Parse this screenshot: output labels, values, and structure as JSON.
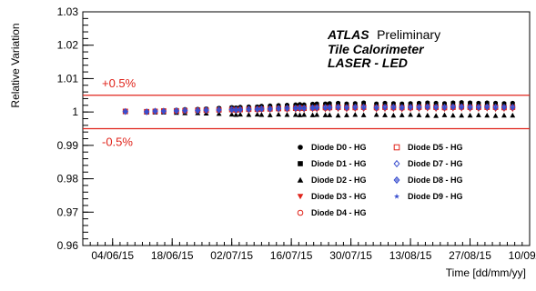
{
  "chart_data": {
    "type": "scatter",
    "xlabel": "Time [dd/mm/yy]",
    "ylabel": "Relative Variation",
    "xlim": [
      "2015-05-28",
      "2015-09-10"
    ],
    "ylim": [
      0.96,
      1.03
    ],
    "x_ticks": [
      "04/06/15",
      "18/06/15",
      "02/07/15",
      "16/07/15",
      "30/07/15",
      "13/08/15",
      "27/08/15",
      "10/09/15"
    ],
    "x_tick_dates": [
      "2015-06-04",
      "2015-06-18",
      "2015-07-02",
      "2015-07-16",
      "2015-07-30",
      "2015-08-13",
      "2015-08-27",
      "2015-09-10"
    ],
    "y_ticks": [
      "0.96",
      "0.97",
      "0.98",
      "0.99",
      "1",
      "1.01",
      "1.02",
      "1.03"
    ],
    "y_tick_values": [
      0.96,
      0.97,
      0.98,
      0.99,
      1.0,
      1.01,
      1.02,
      1.03
    ],
    "reference_lines": [
      {
        "y": 1.005,
        "label": "+0.5%",
        "color": "#e0241b"
      },
      {
        "y": 0.995,
        "label": "-0.5%",
        "color": "#e0241b"
      }
    ],
    "annotation": {
      "atlas": "ATLAS",
      "preliminary": "Preliminary",
      "line2": "Tile Calorimeter",
      "line3": "LASER - LED"
    },
    "legend_placement": "bottom-right",
    "x": [
      "2015-06-07",
      "2015-06-12",
      "2015-06-14",
      "2015-06-16",
      "2015-06-19",
      "2015-06-21",
      "2015-06-24",
      "2015-06-26",
      "2015-06-29",
      "2015-07-02",
      "2015-07-03",
      "2015-07-04",
      "2015-07-06",
      "2015-07-08",
      "2015-07-09",
      "2015-07-11",
      "2015-07-13",
      "2015-07-15",
      "2015-07-17",
      "2015-07-18",
      "2015-07-19",
      "2015-07-21",
      "2015-07-22",
      "2015-07-24",
      "2015-07-25",
      "2015-07-27",
      "2015-07-29",
      "2015-07-31",
      "2015-08-02",
      "2015-08-05",
      "2015-08-07",
      "2015-08-09",
      "2015-08-11",
      "2015-08-13",
      "2015-08-15",
      "2015-08-17",
      "2015-08-19",
      "2015-08-21",
      "2015-08-23",
      "2015-08-25",
      "2015-08-27",
      "2015-08-29",
      "2015-08-31",
      "2015-09-02",
      "2015-09-04",
      "2015-09-06"
    ],
    "series": [
      {
        "name": "Diode D0 - HG",
        "marker": "circle-filled",
        "color": "#000000",
        "values": [
          1.0003,
          1.0002,
          1.0004,
          1.0005,
          1.0006,
          1.0008,
          1.0009,
          1.001,
          1.0012,
          1.0014,
          1.0013,
          1.0015,
          1.0016,
          1.0016,
          1.0018,
          1.0019,
          1.002,
          1.0021,
          1.0022,
          1.0023,
          1.0022,
          1.0024,
          1.0025,
          1.0025,
          1.0026,
          1.0027,
          1.0025,
          1.0026,
          1.0028,
          1.0025,
          1.0027,
          1.0026,
          1.0025,
          1.0026,
          1.0027,
          1.0028,
          1.0027,
          1.0026,
          1.0028,
          1.0029,
          1.0028,
          1.0027,
          1.0028,
          1.0027,
          1.0026,
          1.0027
        ]
      },
      {
        "name": "Diode D1 - HG",
        "marker": "square-filled",
        "color": "#000000",
        "values": [
          1.0002,
          1.0001,
          1.0003,
          1.0004,
          1.0005,
          1.0006,
          1.0007,
          1.0008,
          1.001,
          1.0012,
          1.0011,
          1.0012,
          1.0013,
          1.0014,
          1.0015,
          1.0016,
          1.0017,
          1.0018,
          1.0019,
          1.002,
          1.0019,
          1.0021,
          1.0022,
          1.0022,
          1.0023,
          1.0024,
          1.0022,
          1.0023,
          1.0025,
          1.0022,
          1.0024,
          1.0023,
          1.0022,
          1.0023,
          1.0024,
          1.0025,
          1.0024,
          1.0023,
          1.0025,
          1.0026,
          1.0025,
          1.0024,
          1.0025,
          1.0024,
          1.0023,
          1.0024
        ]
      },
      {
        "name": "Diode D2 - HG",
        "marker": "triangle-up-filled",
        "color": "#000000",
        "values": [
          1.0,
          0.9999,
          0.9999,
          0.9999,
          0.9998,
          0.9997,
          0.9997,
          0.9996,
          0.9995,
          0.9993,
          0.9992,
          0.9993,
          0.9992,
          0.9993,
          0.9992,
          0.9991,
          0.9993,
          0.9992,
          0.9992,
          0.9991,
          0.9992,
          0.9991,
          0.9992,
          0.9991,
          0.9991,
          0.999,
          0.9991,
          0.9992,
          0.9991,
          0.9992,
          0.9991,
          0.999,
          0.9991,
          0.9992,
          0.9991,
          0.999,
          0.9989,
          0.9991,
          0.999,
          0.999,
          0.999,
          0.9991,
          0.999,
          0.9989,
          0.999,
          0.999
        ]
      },
      {
        "name": "Diode D3 - HG",
        "marker": "triangle-down-filled",
        "color": "#e0241b",
        "values": [
          1.0001,
          1.0,
          1.0001,
          1.0001,
          1.0001,
          1.0002,
          1.0002,
          1.0002,
          1.0003,
          1.0003,
          1.0003,
          1.0004,
          1.0004,
          1.0004,
          1.0005,
          1.0005,
          1.0006,
          1.0006,
          1.0006,
          1.0007,
          1.0006,
          1.0007,
          1.0007,
          1.0007,
          1.0008,
          1.0008,
          1.0007,
          1.0008,
          1.0008,
          1.0007,
          1.0008,
          1.0008,
          1.0007,
          1.0008,
          1.0008,
          1.0009,
          1.0008,
          1.0008,
          1.0009,
          1.0009,
          1.0008,
          1.0008,
          1.0009,
          1.0008,
          1.0008,
          1.0008
        ]
      },
      {
        "name": "Diode D4 - HG",
        "marker": "circle-open",
        "color": "#e0241b",
        "values": [
          1.0001,
          1.0001,
          1.0002,
          1.0002,
          1.0003,
          1.0003,
          1.0004,
          1.0004,
          1.0005,
          1.0006,
          1.0005,
          1.0006,
          1.0007,
          1.0007,
          1.0008,
          1.0008,
          1.0009,
          1.0009,
          1.001,
          1.001,
          1.001,
          1.0011,
          1.0011,
          1.0011,
          1.0012,
          1.0012,
          1.0011,
          1.0012,
          1.0012,
          1.0011,
          1.0012,
          1.0012,
          1.0011,
          1.0012,
          1.0012,
          1.0013,
          1.0012,
          1.0012,
          1.0013,
          1.0013,
          1.0012,
          1.0012,
          1.0013,
          1.0012,
          1.0012,
          1.0012
        ]
      },
      {
        "name": "Diode D5 - HG",
        "marker": "square-open",
        "color": "#e0241b",
        "values": [
          1.0002,
          1.0001,
          1.0002,
          1.0003,
          1.0003,
          1.0004,
          1.0005,
          1.0005,
          1.0006,
          1.0007,
          1.0006,
          1.0007,
          1.0008,
          1.0008,
          1.0009,
          1.0009,
          1.001,
          1.001,
          1.0011,
          1.0012,
          1.0011,
          1.0012,
          1.0013,
          1.0013,
          1.0013,
          1.0014,
          1.0013,
          1.0013,
          1.0014,
          1.0013,
          1.0014,
          1.0013,
          1.0013,
          1.0013,
          1.0014,
          1.0015,
          1.0014,
          1.0013,
          1.0014,
          1.0015,
          1.0014,
          1.0014,
          1.0014,
          1.0014,
          1.0013,
          1.0014
        ]
      },
      {
        "name": "Diode D7 - HG",
        "marker": "diamond-open",
        "color": "#3a4fcf",
        "values": [
          1.0002,
          1.0001,
          1.0003,
          1.0003,
          1.0004,
          1.0005,
          1.0005,
          1.0006,
          1.0007,
          1.0008,
          1.0007,
          1.0008,
          1.0009,
          1.0009,
          1.001,
          1.001,
          1.0011,
          1.0012,
          1.0012,
          1.0013,
          1.0012,
          1.0013,
          1.0014,
          1.0014,
          1.0014,
          1.0015,
          1.0014,
          1.0015,
          1.0015,
          1.0014,
          1.0015,
          1.0015,
          1.0014,
          1.0015,
          1.0015,
          1.0016,
          1.0015,
          1.0015,
          1.0016,
          1.0016,
          1.0015,
          1.0015,
          1.0016,
          1.0015,
          1.0015,
          1.0015
        ]
      },
      {
        "name": "Diode D8 - HG",
        "marker": "cross-diamond-open",
        "color": "#3a4fcf",
        "values": [
          1.0001,
          1.0,
          1.0002,
          1.0002,
          1.0003,
          1.0004,
          1.0004,
          1.0005,
          1.0006,
          1.0007,
          1.0006,
          1.0007,
          1.0008,
          1.0008,
          1.0009,
          1.0009,
          1.001,
          1.0011,
          1.0011,
          1.0012,
          1.0011,
          1.0012,
          1.0013,
          1.0013,
          1.0013,
          1.0014,
          1.0013,
          1.0014,
          1.0014,
          1.0013,
          1.0014,
          1.0014,
          1.0013,
          1.0014,
          1.0014,
          1.0015,
          1.0014,
          1.0014,
          1.0015,
          1.0015,
          1.0014,
          1.0014,
          1.0015,
          1.0014,
          1.0014,
          1.0014
        ]
      },
      {
        "name": "Diode D9 - HG",
        "marker": "star",
        "color": "#3a4fcf",
        "values": [
          1.0001,
          1.0001,
          1.0002,
          1.0002,
          1.0003,
          1.0003,
          1.0004,
          1.0005,
          1.0005,
          1.0006,
          1.0006,
          1.0007,
          1.0007,
          1.0008,
          1.0008,
          1.0009,
          1.001,
          1.001,
          1.0011,
          1.0011,
          1.0011,
          1.0012,
          1.0012,
          1.0012,
          1.0013,
          1.0013,
          1.0012,
          1.0013,
          1.0013,
          1.0012,
          1.0013,
          1.0013,
          1.0012,
          1.0013,
          1.0013,
          1.0014,
          1.0013,
          1.0013,
          1.0014,
          1.0014,
          1.0013,
          1.0013,
          1.0014,
          1.0013,
          1.0013,
          1.0013
        ]
      }
    ]
  }
}
